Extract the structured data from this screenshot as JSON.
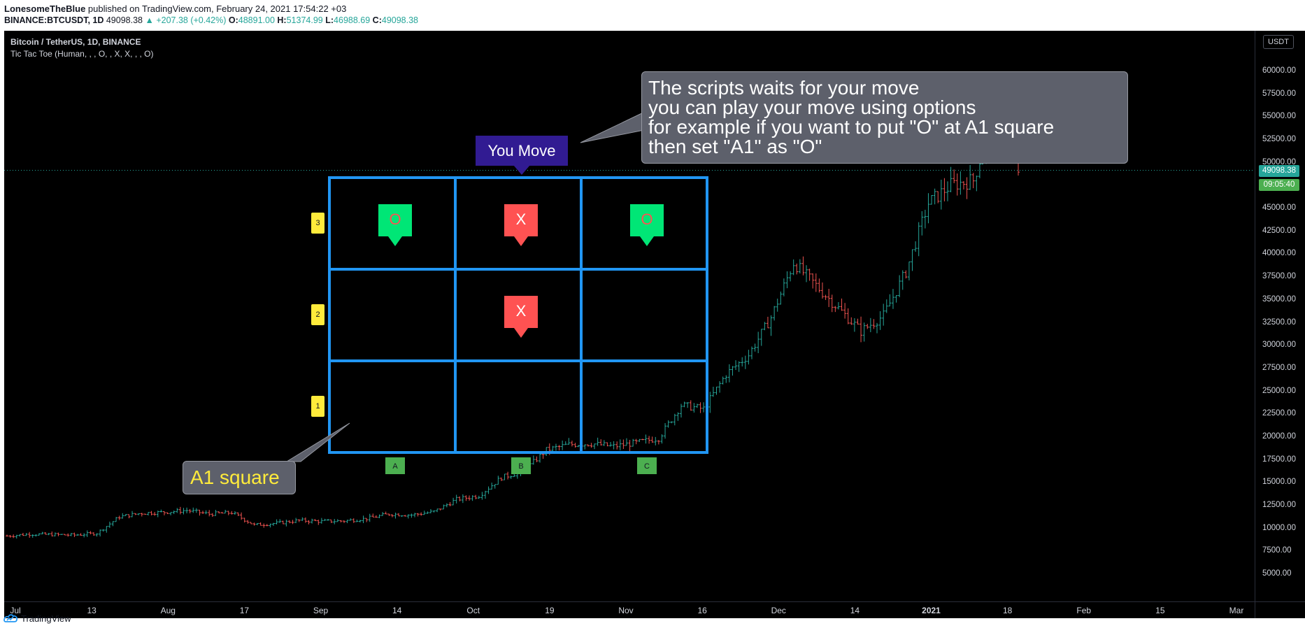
{
  "header": {
    "author": "LonesomeTheBlue",
    "published": " published on TradingView.com, February 24, 2021 17:54:22 +03",
    "symbol": "BINANCE:BTCUSDT, 1D",
    "last": "49098.38",
    "change": "▲ +207.38 (+0.42%)",
    "o_label": "O:",
    "o_value": "48891.00",
    "h_label": "H:",
    "h_value": "51374.99",
    "l_label": "L:",
    "l_value": "46988.69",
    "c_label": "C:",
    "c_value": "49098.38"
  },
  "legend": {
    "title": "Bitcoin / TetherUS, 1D, BINANCE",
    "indicator": "Tic Tac Toe (Human, , , O, , X, X, , , O)"
  },
  "price_axis": {
    "currency": "USDT",
    "last_price": "49098.38",
    "countdown": "09:05:40"
  },
  "footer": {
    "brand": "TradingView",
    "logo_icon": "tradingview-logo-icon"
  },
  "board": {
    "status": "You Move",
    "row_labels": [
      "3",
      "2",
      "1"
    ],
    "col_labels": [
      "A",
      "B",
      "C"
    ],
    "cells": [
      {
        "row": 3,
        "col": "A",
        "mark": "O"
      },
      {
        "row": 3,
        "col": "B",
        "mark": "X"
      },
      {
        "row": 3,
        "col": "C",
        "mark": "O"
      },
      {
        "row": 2,
        "col": "B",
        "mark": "X"
      }
    ],
    "colors": {
      "grid": "#2196f3",
      "o_fill": "#00e676",
      "o_text": "#ff5252",
      "x_fill": "#ff5252",
      "x_text": "#ffffff",
      "row_label": "#ffeb3b",
      "col_label": "#4caf50",
      "status_bg": "#311b92"
    }
  },
  "annotations": {
    "info_lines": [
      "The scripts waits for your move",
      "you can play your move using options",
      "for example if you want to put \"O\" at A1 square",
      "then set \"A1\" as \"O\""
    ],
    "a1_label": "A1 square",
    "a1_color": "#ffeb3b"
  },
  "chart_data": {
    "type": "candlestick",
    "symbol": "BINANCE:BTCUSDT",
    "interval": "1D",
    "ylim": [
      3800,
      64000
    ],
    "yticks": [
      5000,
      7500,
      10000,
      12500,
      15000,
      17500,
      20000,
      22500,
      25000,
      27500,
      30000,
      32500,
      35000,
      37500,
      40000,
      42500,
      45000,
      47500,
      50000,
      52500,
      55000,
      57500,
      60000
    ],
    "ytick_labels": [
      "5000.00",
      "7500.00",
      "10000.00",
      "12500.00",
      "15000.00",
      "17500.00",
      "20000.00",
      "22500.00",
      "25000.00",
      "27500.00",
      "30000.00",
      "32500.00",
      "35000.00",
      "37500.00",
      "40000.00",
      "42500.00",
      "45000.00",
      "47500.00",
      "50000.00",
      "52500.00",
      "55000.00",
      "57500.00",
      "60000.00"
    ],
    "xticks": [
      "Jul",
      "13",
      "Aug",
      "17",
      "Sep",
      "14",
      "Oct",
      "19",
      "Nov",
      "16",
      "Dec",
      "14",
      "2021",
      "18",
      "Feb",
      "15",
      "Mar"
    ],
    "bold_xticks": [
      "2021"
    ],
    "last_price": 49098.38,
    "up_color": "#26a69a",
    "down_color": "#ef5350",
    "weekly_close": [
      9100,
      9300,
      9250,
      9200,
      9400,
      11200,
      11600,
      11700,
      11900,
      11500,
      11650,
      10300,
      10500,
      10800,
      10700,
      10750,
      11000,
      11500,
      11400,
      11750,
      13100,
      13500,
      15500,
      16200,
      18500,
      19100,
      19200,
      18900,
      19300,
      19800,
      23400,
      23000,
      26800,
      28900,
      33000,
      39000,
      36500,
      34000,
      31500,
      33200,
      38000,
      45500,
      47500,
      48000,
      55800,
      49098
    ]
  }
}
